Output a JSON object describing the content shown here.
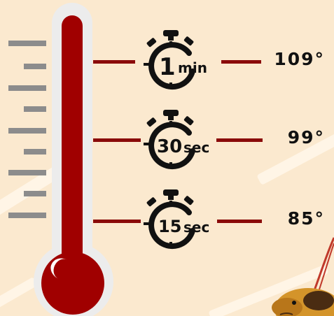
{
  "timers": [
    {
      "number": "1",
      "unit": "min"
    },
    {
      "number": "30",
      "unit": "sec"
    },
    {
      "number": "15",
      "unit": "sec"
    }
  ],
  "temperatures": [
    "109°",
    "99°",
    "85°"
  ],
  "colors": {
    "background": "#fbe9cf",
    "thermometer_fill": "#a00000",
    "thermometer_casing": "#ececec",
    "tick_marks": "#8c8c8c",
    "connector_lines": "#8a0a0a",
    "text": "#111111"
  },
  "icons": [
    "thermometer-icon",
    "stopwatch-icon",
    "dog-illustration"
  ]
}
